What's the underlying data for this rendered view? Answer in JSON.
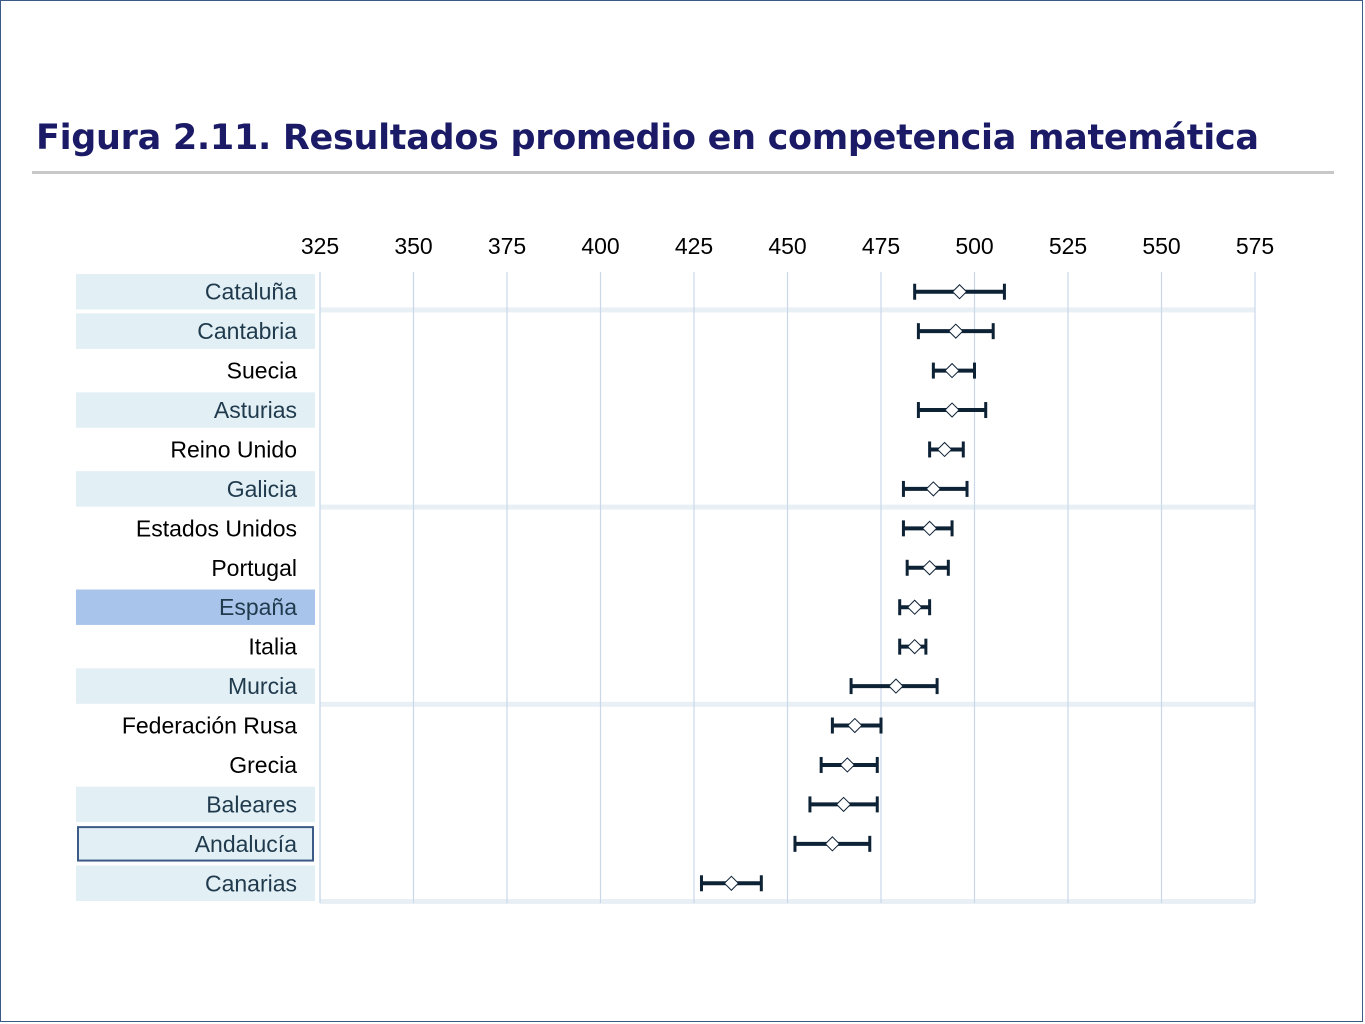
{
  "page": {
    "title": "Figura 2.11. Resultados promedio en competencia matemática"
  },
  "colors": {
    "title": "#1a1a66",
    "frame": "#3b5a86",
    "row_band": "#e2eff4",
    "highlight_band": "#a9c4ea",
    "band_text": "#1f3a4d",
    "plain_text": "#000000",
    "gridline": "#c9d7e8",
    "error_bar": "#0e2236",
    "marker_fill": "#ffffff"
  },
  "chart_data": {
    "type": "dot-plot with error bars",
    "title": "",
    "xlabel": "",
    "ylabel": "",
    "xlim": [
      325,
      575
    ],
    "x_ticks": [
      325,
      350,
      375,
      400,
      425,
      450,
      475,
      500,
      525,
      550,
      575
    ],
    "grid": "vertical",
    "axis_position": "top",
    "categories": [
      "Cataluña",
      "Cantabria",
      "Suecia",
      "Asturias",
      "Reino Unido",
      "Galicia",
      "Estados Unidos",
      "Portugal",
      "España",
      "Italia",
      "Murcia",
      "Federación Rusa",
      "Grecia",
      "Baleares",
      "Andalucía",
      "Canarias"
    ],
    "series": [
      {
        "mean": [
          496,
          495,
          494,
          494,
          492,
          489,
          488,
          488,
          484,
          484,
          479,
          468,
          466,
          465,
          462,
          435
        ],
        "lower": [
          484,
          485,
          489,
          485,
          488,
          481,
          481,
          482,
          480,
          480,
          467,
          462,
          459,
          456,
          452,
          427
        ],
        "upper": [
          508,
          505,
          500,
          503,
          497,
          498,
          494,
          493,
          488,
          487,
          490,
          475,
          474,
          474,
          472,
          443
        ]
      }
    ],
    "row_style": [
      "band",
      "band",
      "plain",
      "band",
      "plain",
      "band",
      "plain",
      "plain",
      "highlight",
      "plain",
      "band",
      "plain",
      "plain",
      "band",
      "outlined",
      "band"
    ]
  }
}
